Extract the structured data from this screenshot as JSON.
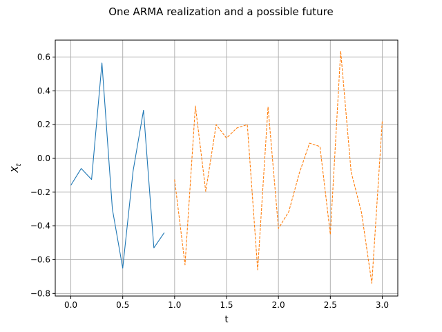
{
  "chart_data": {
    "type": "line",
    "title": "One ARMA realization and a possible future",
    "xlabel": "t",
    "ylabel": "X",
    "ylabel_sub": "t",
    "xlim": [
      -0.15,
      3.15
    ],
    "ylim": [
      -0.815,
      0.7
    ],
    "xticks": [
      0.0,
      0.5,
      1.0,
      1.5,
      2.0,
      2.5,
      3.0
    ],
    "xtick_labels": [
      "0.0",
      "0.5",
      "1.0",
      "1.5",
      "2.0",
      "2.5",
      "3.0"
    ],
    "yticks": [
      -0.8,
      -0.6,
      -0.4,
      -0.2,
      0.0,
      0.2,
      0.4,
      0.6
    ],
    "ytick_labels": [
      "−0.8",
      "−0.6",
      "−0.4",
      "−0.2",
      "0.0",
      "0.2",
      "0.4",
      "0.6"
    ],
    "grid": true,
    "series": [
      {
        "color": "#1f77b4",
        "style": "solid",
        "x": [
          0.0,
          0.1,
          0.2,
          0.3,
          0.4,
          0.5,
          0.6,
          0.7,
          0.8,
          0.9
        ],
        "y": [
          -0.16,
          -0.06,
          -0.125,
          0.565,
          -0.3,
          -0.65,
          -0.075,
          0.285,
          -0.53,
          -0.44
        ]
      },
      {
        "color": "#ff7f0e",
        "style": "dashed",
        "x": [
          1.0,
          1.1,
          1.2,
          1.3,
          1.4,
          1.5,
          1.6,
          1.7,
          1.8,
          1.9,
          2.0,
          2.1,
          2.2,
          2.3,
          2.4,
          2.5,
          2.6,
          2.7,
          2.8,
          2.9,
          3.0
        ],
        "y": [
          -0.125,
          -0.63,
          0.31,
          -0.195,
          0.2,
          0.12,
          0.18,
          0.2,
          -0.66,
          0.305,
          -0.415,
          -0.315,
          -0.09,
          0.09,
          0.07,
          -0.45,
          0.635,
          -0.08,
          -0.32,
          -0.74,
          0.22
        ]
      }
    ]
  }
}
